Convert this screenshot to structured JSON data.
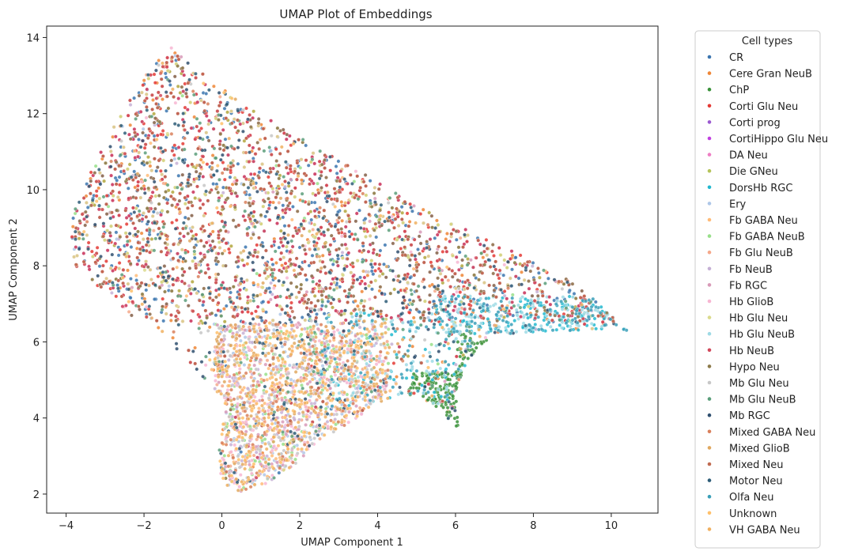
{
  "chart_data": {
    "type": "scatter",
    "title": "UMAP Plot of Embeddings",
    "xlabel": "UMAP Component 1",
    "ylabel": "UMAP Component 2",
    "xlim": [
      -4.5,
      11.2
    ],
    "ylim": [
      1.5,
      14.3
    ],
    "x_ticks": [
      -4,
      -2,
      0,
      2,
      4,
      6,
      8,
      10
    ],
    "y_ticks": [
      2,
      4,
      6,
      8,
      10,
      12,
      14
    ],
    "x_tick_labels": [
      "−4",
      "−2",
      "0",
      "2",
      "4",
      "6",
      "8",
      "10"
    ],
    "y_tick_labels": [
      "2",
      "4",
      "6",
      "8",
      "10",
      "12",
      "14"
    ],
    "grid": false,
    "legend_title": "Cell types",
    "legend_placement": "outside-right",
    "series": [
      {
        "name": "CR",
        "color": "#3b75af"
      },
      {
        "name": "Cere Gran NeuB",
        "color": "#ef8636"
      },
      {
        "name": "ChP",
        "color": "#3a923a"
      },
      {
        "name": "Corti Glu Neu",
        "color": "#e43a35"
      },
      {
        "name": "Corti prog",
        "color": "#9b59d0"
      },
      {
        "name": "CortiHippo Glu Neu",
        "color": "#c03fe0"
      },
      {
        "name": "DA Neu",
        "color": "#ee7ec4"
      },
      {
        "name": "Die GNeu",
        "color": "#b5c45a"
      },
      {
        "name": "DorsHb RGC",
        "color": "#22b8cf"
      },
      {
        "name": "Ery",
        "color": "#aec7e8"
      },
      {
        "name": "Fb GABA Neu",
        "color": "#ffbb78"
      },
      {
        "name": "Fb GABA NeuB",
        "color": "#98df8a"
      },
      {
        "name": "Fb Glu NeuB",
        "color": "#f5a88a"
      },
      {
        "name": "Fb NeuB",
        "color": "#c5b0d5"
      },
      {
        "name": "Fb RGC",
        "color": "#d89ab8"
      },
      {
        "name": "Hb GlioB",
        "color": "#f7b6d2"
      },
      {
        "name": "Hb Glu Neu",
        "color": "#dbdb8d"
      },
      {
        "name": "Hb Glu NeuB",
        "color": "#9edae5"
      },
      {
        "name": "Hb NeuB",
        "color": "#d1495b"
      },
      {
        "name": "Hypo Neu",
        "color": "#8c7a4a"
      },
      {
        "name": "Mb Glu Neu",
        "color": "#c7c7c7"
      },
      {
        "name": "Mb Glu NeuB",
        "color": "#5a9e7a"
      },
      {
        "name": "Mb RGC",
        "color": "#2f4f6f"
      },
      {
        "name": "Mixed GABA Neu",
        "color": "#d9805c"
      },
      {
        "name": "Mixed GlioB",
        "color": "#e0a860"
      },
      {
        "name": "Mixed Neu",
        "color": "#c06a50"
      },
      {
        "name": "Motor Neu",
        "color": "#2e5d78"
      },
      {
        "name": "Olfa Neu",
        "color": "#3a9fb8"
      },
      {
        "name": "Unknown",
        "color": "#ffc06a"
      },
      {
        "name": "VH GABA Neu",
        "color": "#f0b060"
      }
    ],
    "point_count_per_series": 180
  }
}
